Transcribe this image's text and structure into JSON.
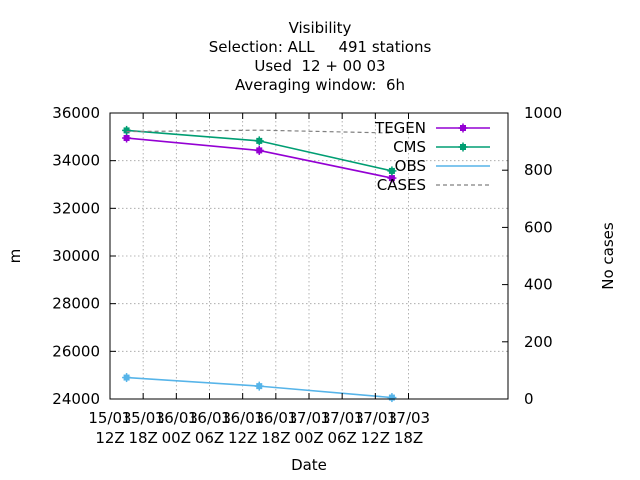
{
  "chart_data": {
    "type": "line",
    "title_lines": [
      "Visibility",
      "Selection: ALL     491 stations",
      "Used  12 + 00 03",
      "Averaging window:  6h"
    ],
    "xlabel": "Date",
    "ylabel": "m",
    "y2label": "No cases",
    "xlim_hours": [
      0,
      72
    ],
    "x_ticks": [
      {
        "h": 0,
        "l1": "15/03",
        "l2": "12Z"
      },
      {
        "h": 6,
        "l1": "15/03",
        "l2": "18Z"
      },
      {
        "h": 12,
        "l1": "16/03",
        "l2": "00Z"
      },
      {
        "h": 18,
        "l1": "16/03",
        "l2": "06Z"
      },
      {
        "h": 24,
        "l1": "16/03",
        "l2": "12Z"
      },
      {
        "h": 30,
        "l1": "16/03",
        "l2": "18Z"
      },
      {
        "h": 36,
        "l1": "17/03",
        "l2": "00Z"
      },
      {
        "h": 42,
        "l1": "17/03",
        "l2": "06Z"
      },
      {
        "h": 48,
        "l1": "17/03",
        "l2": "12Z"
      },
      {
        "h": 54,
        "l1": "17/03",
        "l2": "18Z"
      }
    ],
    "ylim": [
      24000,
      36000
    ],
    "y_ticks": [
      24000,
      26000,
      28000,
      30000,
      32000,
      34000,
      36000
    ],
    "y2lim": [
      0,
      1000
    ],
    "y2_ticks": [
      0,
      200,
      400,
      600,
      800,
      1000
    ],
    "grid": true,
    "legend_position": "top-right",
    "series": [
      {
        "name": "TEGEN",
        "color": "#9400d3",
        "axis": "y",
        "style": "solid",
        "marker": true,
        "x": [
          3,
          27,
          51
        ],
        "y": [
          34950,
          34430,
          33270
        ]
      },
      {
        "name": "CMS",
        "color": "#009e73",
        "axis": "y",
        "style": "solid",
        "marker": true,
        "x": [
          3,
          27,
          51
        ],
        "y": [
          35270,
          34830,
          33570
        ]
      },
      {
        "name": "OBS",
        "color": "#56b4e9",
        "axis": "y",
        "style": "solid",
        "marker": false,
        "x": [],
        "y": []
      },
      {
        "name": "CASES",
        "color": "#808080",
        "axis": "y2",
        "style": "dashed",
        "marker": false,
        "x": [
          3,
          27,
          51
        ],
        "y": [
          935,
          940,
          930
        ]
      },
      {
        "name": "",
        "color": "#56b4e9",
        "axis": "y2",
        "style": "solid",
        "marker": true,
        "x": [
          3,
          27,
          51
        ],
        "y": [
          75,
          45,
          5
        ]
      }
    ]
  }
}
